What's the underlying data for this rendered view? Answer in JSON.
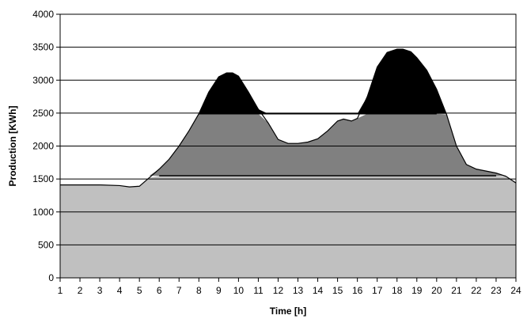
{
  "chart_data": {
    "type": "area",
    "title": "",
    "xlabel": "Time [h]",
    "ylabel": "Production [KWh]",
    "xlim": [
      1,
      24
    ],
    "ylim": [
      0,
      4000
    ],
    "x_ticks": [
      1,
      2,
      3,
      4,
      5,
      6,
      7,
      8,
      9,
      10,
      11,
      12,
      13,
      14,
      15,
      16,
      17,
      18,
      19,
      20,
      21,
      22,
      23,
      24
    ],
    "y_ticks": [
      0,
      500,
      1000,
      1500,
      2000,
      2500,
      3000,
      3500,
      4000
    ],
    "grid": "horizontal",
    "legend": "none",
    "colors": {
      "lower": "#c0c0c0",
      "middle": "#808080",
      "upper": "#000000"
    },
    "levels": {
      "base": 1550,
      "peak": 2490
    },
    "series": [
      {
        "x": [
          1,
          2,
          3,
          4,
          4.5,
          5,
          5.5,
          6,
          6.5,
          7,
          7.5,
          8,
          8.5,
          9,
          9.4,
          9.7,
          10,
          10.5,
          11,
          11.5,
          12,
          12.5,
          13,
          13.5,
          14,
          14.5,
          15,
          15.3,
          15.7,
          16,
          16.5,
          17,
          17.5,
          18,
          18.3,
          18.7,
          19,
          19.5,
          20,
          20.5,
          21,
          21.5,
          22,
          22.5,
          23,
          23.5,
          24
        ],
        "values": [
          1410,
          1410,
          1410,
          1400,
          1380,
          1390,
          1520,
          1650,
          1800,
          2000,
          2230,
          2490,
          2820,
          3050,
          3110,
          3110,
          3060,
          2820,
          2560,
          2350,
          2100,
          2040,
          2040,
          2060,
          2110,
          2230,
          2380,
          2410,
          2380,
          2420,
          2750,
          3200,
          3420,
          3470,
          3470,
          3430,
          3340,
          3150,
          2860,
          2480,
          2000,
          1720,
          1650,
          1620,
          1590,
          1540,
          1440
        ]
      }
    ]
  }
}
